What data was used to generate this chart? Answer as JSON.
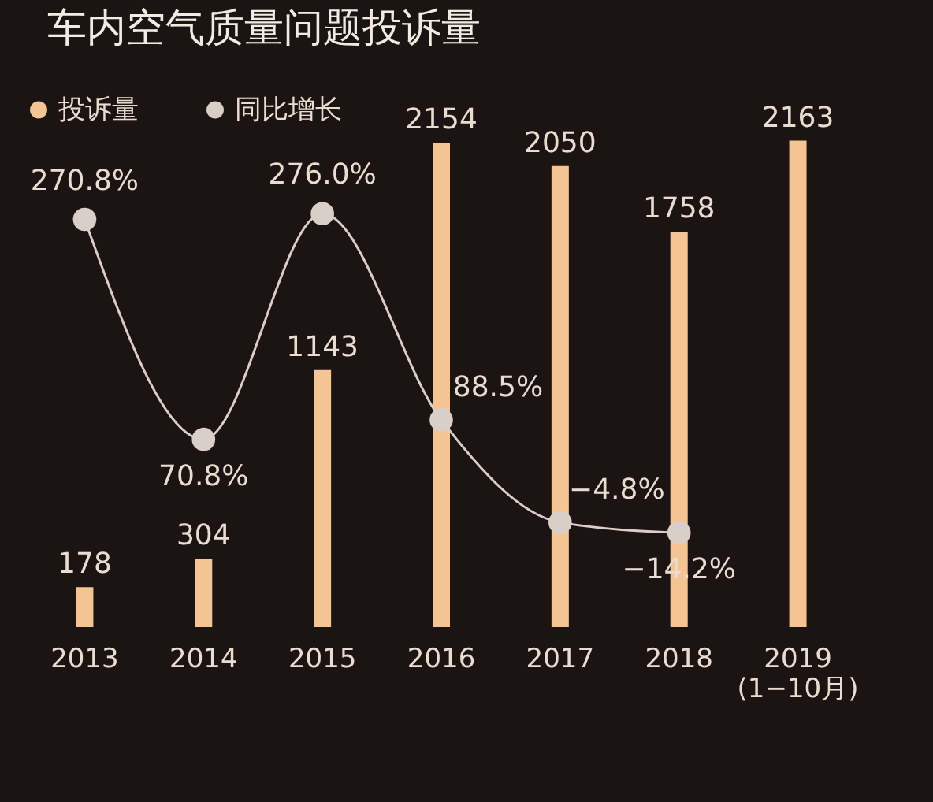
{
  "chart_data": {
    "type": "bar",
    "title": "车内空气质量问题投诉量",
    "categories": [
      "2013",
      "2014",
      "2015",
      "2016",
      "2017",
      "2018",
      "2019\n(1−10月)"
    ],
    "series": [
      {
        "name": "投诉量",
        "color": "#f4c493",
        "values": [
          178,
          304,
          1143,
          2154,
          2050,
          1758,
          2163
        ],
        "value_labels": [
          "178",
          "304",
          "1143",
          "2154",
          "2050",
          "1758",
          "2163"
        ]
      },
      {
        "name": "同比增长",
        "type": "line",
        "axis": "y2",
        "color": "#d8d0c8",
        "values": [
          270.8,
          70.8,
          276.0,
          88.5,
          -4.8,
          -14.2,
          null
        ],
        "value_labels": [
          "270.8%",
          "70.8%",
          "276.0%",
          "88.5%",
          "−4.8%",
          "−14.2%",
          null
        ]
      }
    ],
    "legend": "top left",
    "marker": "circle"
  }
}
